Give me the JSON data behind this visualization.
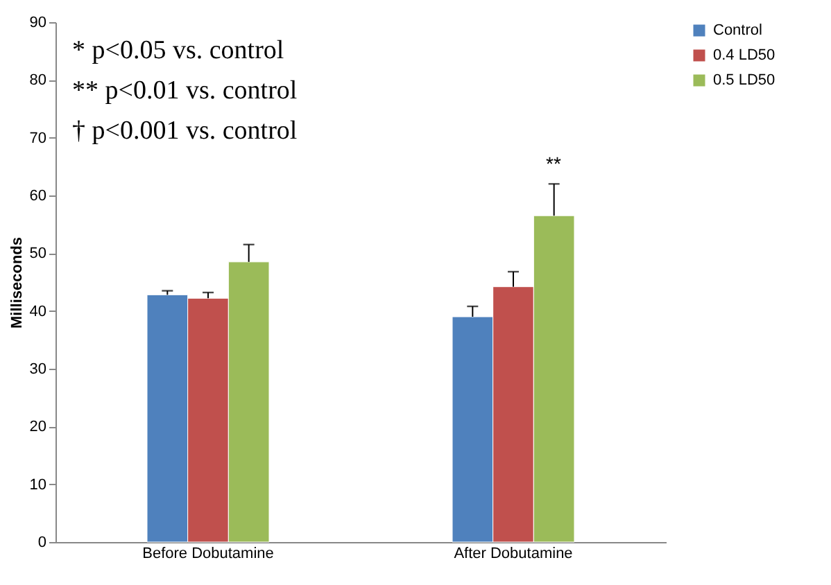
{
  "chart_data": {
    "type": "bar",
    "ylabel": "Milliseconds",
    "categories": [
      "Before Dobutamine",
      "After Dobutamine"
    ],
    "series": [
      {
        "name": "Control",
        "color": "#4f81bd",
        "values": [
          42.8,
          39.0
        ],
        "errors": [
          [
            42.8,
            43.5
          ],
          [
            39.0,
            40.8
          ]
        ]
      },
      {
        "name": "0.4 LD50",
        "color": "#c0504d",
        "values": [
          42.2,
          44.2
        ],
        "errors": [
          [
            42.2,
            43.2
          ],
          [
            44.2,
            46.8
          ]
        ]
      },
      {
        "name": "0.5 LD50",
        "color": "#9bbb59",
        "values": [
          48.5,
          56.5
        ],
        "errors": [
          [
            48.5,
            51.5
          ],
          [
            56.5,
            62.0
          ]
        ]
      }
    ],
    "ylim": [
      0,
      90
    ],
    "yticks": [
      0,
      10,
      20,
      30,
      40,
      50,
      60,
      70,
      80,
      90
    ],
    "grid": false,
    "legend": "right",
    "annotations": [
      "*   p<0.05  vs. control",
      "** p<0.01   vs. control",
      "†  p<0.001 vs. control",
      "**"
    ]
  }
}
